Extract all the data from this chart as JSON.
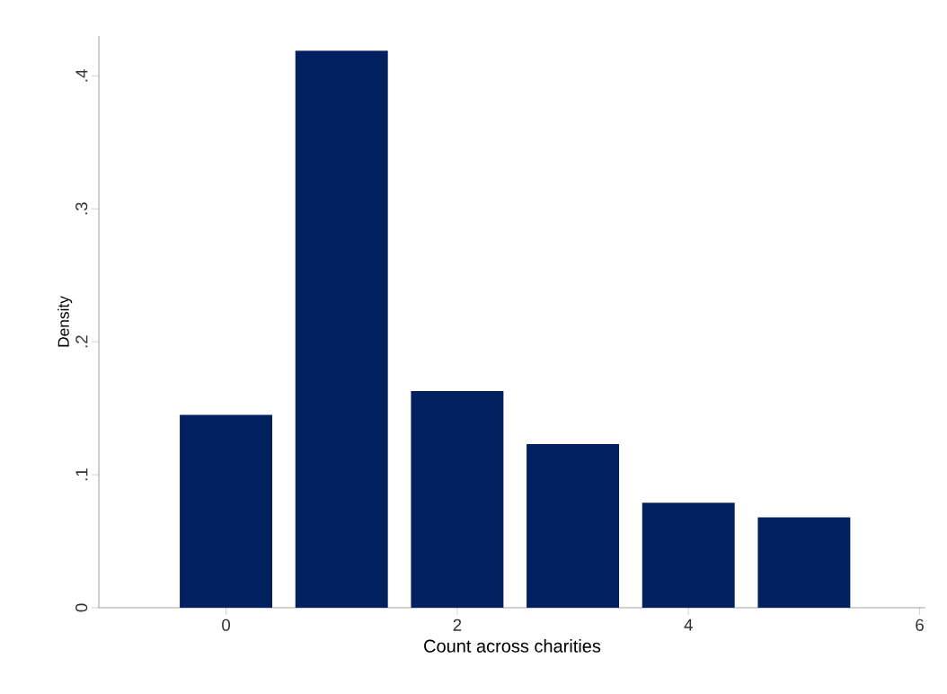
{
  "chart_data": {
    "type": "bar",
    "xlabel": "Count across charities",
    "ylabel": "Density",
    "x": [
      0,
      1,
      2,
      3,
      4,
      5
    ],
    "values": [
      0.145,
      0.419,
      0.163,
      0.123,
      0.079,
      0.068
    ],
    "color": "#002060",
    "xlim": [
      -1.1,
      6.05
    ],
    "xticks": [
      0,
      2,
      4,
      6
    ],
    "ylim": [
      0,
      0.43
    ],
    "yticks": [
      0,
      {
        "value": 0.1,
        "label": ".1"
      },
      {
        "value": 0.2,
        "label": ".2"
      },
      {
        "value": 0.3,
        "label": ".3"
      },
      {
        "value": 0.4,
        "label": ".4"
      }
    ],
    "grid": false
  }
}
